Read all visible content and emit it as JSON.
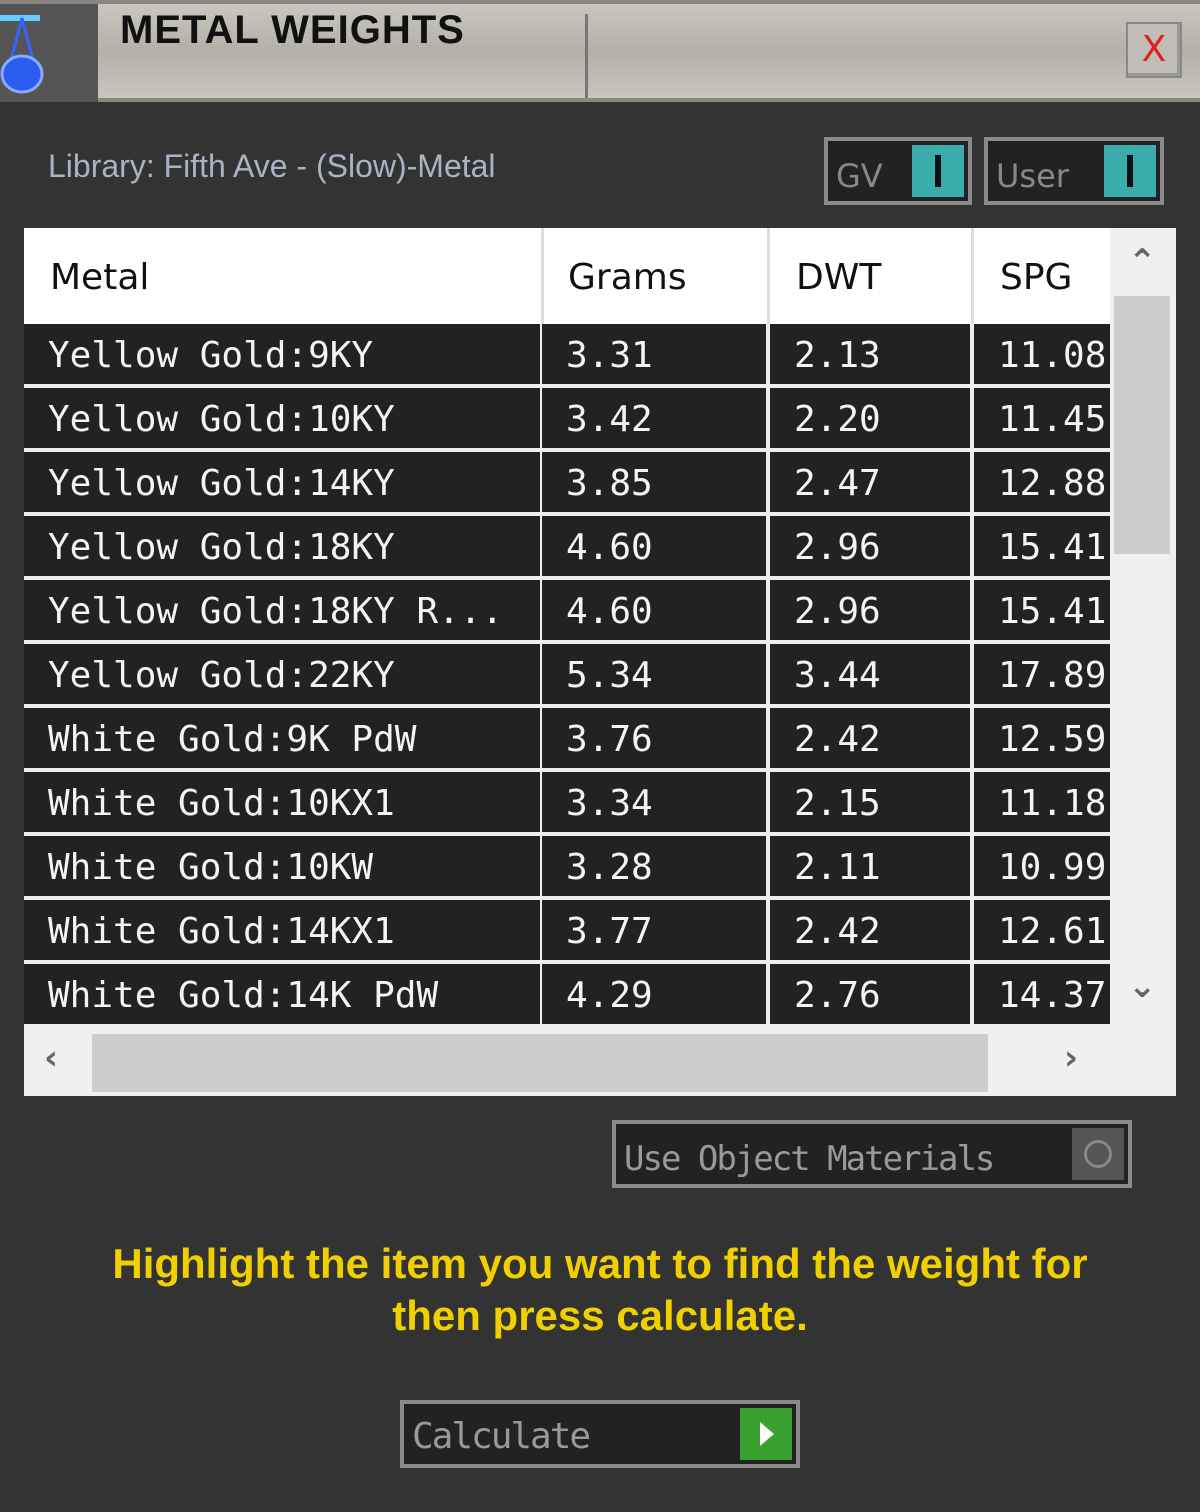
{
  "window": {
    "title": "METAL WEIGHTS",
    "close_label": "X"
  },
  "library": "Library: Fifth Ave - (Slow)-Metal",
  "toggles": [
    {
      "label": "GV",
      "on": true
    },
    {
      "label": "User",
      "on": true
    }
  ],
  "table": {
    "columns": [
      "Metal",
      "Grams",
      "DWT",
      "SPG"
    ],
    "rows": [
      [
        "Yellow Gold:9KY",
        "3.31",
        "2.13",
        "11.08"
      ],
      [
        "Yellow Gold:10KY",
        "3.42",
        "2.20",
        "11.45"
      ],
      [
        "Yellow Gold:14KY",
        "3.85",
        "2.47",
        "12.88"
      ],
      [
        "Yellow Gold:18KY",
        "4.60",
        "2.96",
        "15.41"
      ],
      [
        "Yellow Gold:18KY R...",
        "4.60",
        "2.96",
        "15.41"
      ],
      [
        "Yellow Gold:22KY",
        "5.34",
        "3.44",
        "17.89"
      ],
      [
        "White Gold:9K PdW",
        "3.76",
        "2.42",
        "12.59"
      ],
      [
        "White Gold:10KX1",
        "3.34",
        "2.15",
        "11.18"
      ],
      [
        "White Gold:10KW",
        "3.28",
        "2.11",
        "10.99"
      ],
      [
        "White Gold:14KX1",
        "3.77",
        "2.42",
        "12.61"
      ],
      [
        "White Gold:14K PdW",
        "4.29",
        "2.76",
        "14.37"
      ]
    ]
  },
  "use_object_materials": {
    "label": "Use Object Materials",
    "on": false
  },
  "hint": "Highlight the item you want to find the weight for then press calculate.",
  "calculate_label": "Calculate",
  "colors": {
    "background": "#333333",
    "hint": "#f0d000",
    "toggle_on": "#3aacac",
    "calculate": "#3aa030"
  }
}
